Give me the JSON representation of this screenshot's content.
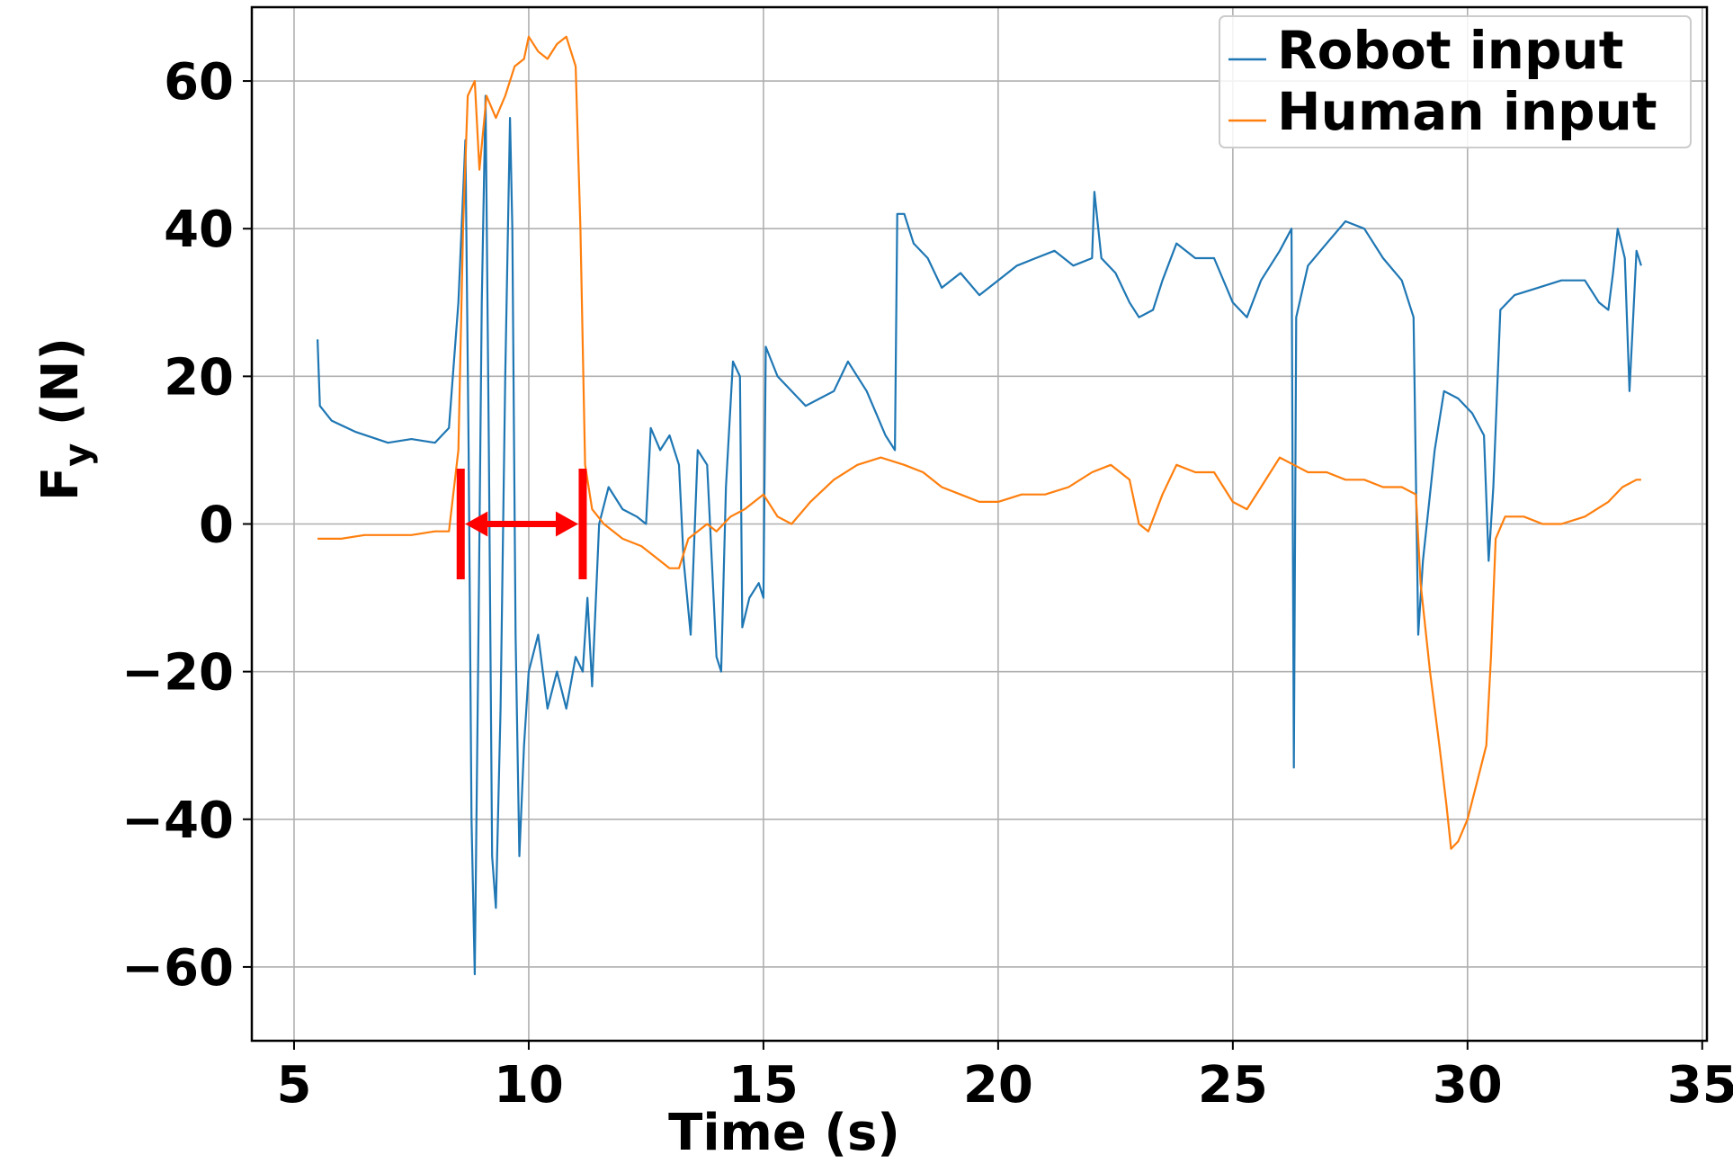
{
  "chart_data": {
    "type": "line",
    "title": "",
    "xlabel": "Time (s)",
    "ylabel": "F",
    "ylabel_sub": "y",
    "ylabel_unit": "(N)",
    "xlim": [
      4.1,
      35.1
    ],
    "ylim": [
      -70,
      70
    ],
    "xticks": [
      5,
      10,
      15,
      20,
      25,
      30,
      35
    ],
    "yticks": [
      -60,
      -40,
      -20,
      0,
      20,
      40,
      60
    ],
    "ytick_labels": [
      "−60",
      "−40",
      "−20",
      "0",
      "20",
      "40",
      "60"
    ],
    "grid": true,
    "legend_position": "top-right",
    "series": [
      {
        "name": "Robot input",
        "color": "#1f77b4",
        "points": [
          [
            5.5,
            25
          ],
          [
            5.55,
            16
          ],
          [
            5.8,
            14
          ],
          [
            6.3,
            12.5
          ],
          [
            7.0,
            11
          ],
          [
            7.5,
            11.5
          ],
          [
            8.0,
            11
          ],
          [
            8.3,
            13
          ],
          [
            8.5,
            30
          ],
          [
            8.65,
            52
          ],
          [
            8.72,
            10
          ],
          [
            8.78,
            -40
          ],
          [
            8.85,
            -61
          ],
          [
            8.92,
            -20
          ],
          [
            9.0,
            30
          ],
          [
            9.08,
            58
          ],
          [
            9.15,
            10
          ],
          [
            9.22,
            -45
          ],
          [
            9.3,
            -52
          ],
          [
            9.4,
            -25
          ],
          [
            9.5,
            20
          ],
          [
            9.6,
            55
          ],
          [
            9.65,
            40
          ],
          [
            9.72,
            -15
          ],
          [
            9.8,
            -45
          ],
          [
            9.9,
            -30
          ],
          [
            10.0,
            -20
          ],
          [
            10.2,
            -15
          ],
          [
            10.4,
            -25
          ],
          [
            10.6,
            -20
          ],
          [
            10.8,
            -25
          ],
          [
            11.0,
            -18
          ],
          [
            11.15,
            -20
          ],
          [
            11.25,
            -10
          ],
          [
            11.35,
            -22
          ],
          [
            11.5,
            0
          ],
          [
            11.7,
            5
          ],
          [
            12.0,
            2
          ],
          [
            12.3,
            1
          ],
          [
            12.5,
            0
          ],
          [
            12.6,
            13
          ],
          [
            12.8,
            10
          ],
          [
            13.0,
            12
          ],
          [
            13.2,
            8
          ],
          [
            13.3,
            -5
          ],
          [
            13.45,
            -15
          ],
          [
            13.6,
            10
          ],
          [
            13.8,
            8
          ],
          [
            14.0,
            -18
          ],
          [
            14.1,
            -20
          ],
          [
            14.2,
            5
          ],
          [
            14.35,
            22
          ],
          [
            14.5,
            20
          ],
          [
            14.55,
            -14
          ],
          [
            14.7,
            -10
          ],
          [
            14.9,
            -8
          ],
          [
            15.0,
            -10
          ],
          [
            15.05,
            24
          ],
          [
            15.3,
            20
          ],
          [
            15.6,
            18
          ],
          [
            15.9,
            16
          ],
          [
            16.2,
            17
          ],
          [
            16.5,
            18
          ],
          [
            16.8,
            22
          ],
          [
            17.0,
            20
          ],
          [
            17.2,
            18
          ],
          [
            17.4,
            15
          ],
          [
            17.6,
            12
          ],
          [
            17.8,
            10
          ],
          [
            17.85,
            42
          ],
          [
            18.0,
            42
          ],
          [
            18.2,
            38
          ],
          [
            18.5,
            36
          ],
          [
            18.8,
            32
          ],
          [
            19.2,
            34
          ],
          [
            19.6,
            31
          ],
          [
            20.0,
            33
          ],
          [
            20.4,
            35
          ],
          [
            20.8,
            36
          ],
          [
            21.2,
            37
          ],
          [
            21.6,
            35
          ],
          [
            22.0,
            36
          ],
          [
            22.05,
            45
          ],
          [
            22.2,
            36
          ],
          [
            22.5,
            34
          ],
          [
            22.8,
            30
          ],
          [
            23.0,
            28
          ],
          [
            23.3,
            29
          ],
          [
            23.5,
            33
          ],
          [
            23.8,
            38
          ],
          [
            24.2,
            36
          ],
          [
            24.6,
            36
          ],
          [
            25.0,
            30
          ],
          [
            25.3,
            28
          ],
          [
            25.6,
            33
          ],
          [
            26.0,
            37
          ],
          [
            26.25,
            40
          ],
          [
            26.3,
            -33
          ],
          [
            26.35,
            28
          ],
          [
            26.6,
            35
          ],
          [
            27.0,
            38
          ],
          [
            27.4,
            41
          ],
          [
            27.8,
            40
          ],
          [
            28.2,
            36
          ],
          [
            28.6,
            33
          ],
          [
            28.85,
            28
          ],
          [
            28.95,
            -15
          ],
          [
            29.05,
            -5
          ],
          [
            29.3,
            10
          ],
          [
            29.5,
            18
          ],
          [
            29.8,
            17
          ],
          [
            30.1,
            15
          ],
          [
            30.35,
            12
          ],
          [
            30.45,
            -5
          ],
          [
            30.55,
            5
          ],
          [
            30.7,
            29
          ],
          [
            31.0,
            31
          ],
          [
            31.5,
            32
          ],
          [
            32.0,
            33
          ],
          [
            32.5,
            33
          ],
          [
            32.8,
            30
          ],
          [
            33.0,
            29
          ],
          [
            33.1,
            34
          ],
          [
            33.2,
            40
          ],
          [
            33.35,
            36
          ],
          [
            33.45,
            18
          ],
          [
            33.6,
            37
          ],
          [
            33.7,
            35
          ]
        ]
      },
      {
        "name": "Human input",
        "color": "#ff7f0e",
        "points": [
          [
            5.5,
            -2
          ],
          [
            6.0,
            -2
          ],
          [
            6.5,
            -1.5
          ],
          [
            7.0,
            -1.5
          ],
          [
            7.5,
            -1.5
          ],
          [
            8.0,
            -1
          ],
          [
            8.3,
            -1
          ],
          [
            8.5,
            10
          ],
          [
            8.6,
            40
          ],
          [
            8.7,
            58
          ],
          [
            8.85,
            60
          ],
          [
            8.95,
            48
          ],
          [
            9.1,
            58
          ],
          [
            9.3,
            55
          ],
          [
            9.5,
            58
          ],
          [
            9.7,
            62
          ],
          [
            9.9,
            63
          ],
          [
            10.0,
            66
          ],
          [
            10.2,
            64
          ],
          [
            10.4,
            63
          ],
          [
            10.6,
            65
          ],
          [
            10.8,
            66
          ],
          [
            11.0,
            62
          ],
          [
            11.1,
            40
          ],
          [
            11.2,
            8
          ],
          [
            11.35,
            2
          ],
          [
            11.6,
            0
          ],
          [
            12.0,
            -2
          ],
          [
            12.4,
            -3
          ],
          [
            12.8,
            -5
          ],
          [
            13.0,
            -6
          ],
          [
            13.2,
            -6
          ],
          [
            13.4,
            -2
          ],
          [
            13.8,
            0
          ],
          [
            14.0,
            -1
          ],
          [
            14.3,
            1
          ],
          [
            14.6,
            2
          ],
          [
            15.0,
            4
          ],
          [
            15.3,
            1
          ],
          [
            15.6,
            0
          ],
          [
            16.0,
            3
          ],
          [
            16.5,
            6
          ],
          [
            17.0,
            8
          ],
          [
            17.5,
            9
          ],
          [
            18.0,
            8
          ],
          [
            18.4,
            7
          ],
          [
            18.8,
            5
          ],
          [
            19.2,
            4
          ],
          [
            19.6,
            3
          ],
          [
            20.0,
            3
          ],
          [
            20.5,
            4
          ],
          [
            21.0,
            4
          ],
          [
            21.5,
            5
          ],
          [
            22.0,
            7
          ],
          [
            22.4,
            8
          ],
          [
            22.8,
            6
          ],
          [
            23.0,
            0
          ],
          [
            23.2,
            -1
          ],
          [
            23.5,
            4
          ],
          [
            23.8,
            8
          ],
          [
            24.2,
            7
          ],
          [
            24.6,
            7
          ],
          [
            25.0,
            3
          ],
          [
            25.3,
            2
          ],
          [
            25.6,
            5
          ],
          [
            26.0,
            9
          ],
          [
            26.3,
            8
          ],
          [
            26.6,
            7
          ],
          [
            27.0,
            7
          ],
          [
            27.4,
            6
          ],
          [
            27.8,
            6
          ],
          [
            28.2,
            5
          ],
          [
            28.6,
            5
          ],
          [
            28.9,
            4
          ],
          [
            29.0,
            -8
          ],
          [
            29.2,
            -20
          ],
          [
            29.4,
            -30
          ],
          [
            29.55,
            -38
          ],
          [
            29.65,
            -44
          ],
          [
            29.8,
            -43
          ],
          [
            30.0,
            -40
          ],
          [
            30.2,
            -35
          ],
          [
            30.4,
            -30
          ],
          [
            30.5,
            -18
          ],
          [
            30.6,
            -2
          ],
          [
            30.8,
            1
          ],
          [
            31.2,
            1
          ],
          [
            31.6,
            0
          ],
          [
            32.0,
            0
          ],
          [
            32.5,
            1
          ],
          [
            33.0,
            3
          ],
          [
            33.3,
            5
          ],
          [
            33.6,
            6
          ],
          [
            33.7,
            6
          ]
        ]
      }
    ],
    "annotation": {
      "type": "double-arrow-interval",
      "color": "#ff0000",
      "x_start": 8.55,
      "x_end": 11.15,
      "y": 0,
      "bar_y_range": [
        -7.5,
        7.5
      ]
    }
  }
}
